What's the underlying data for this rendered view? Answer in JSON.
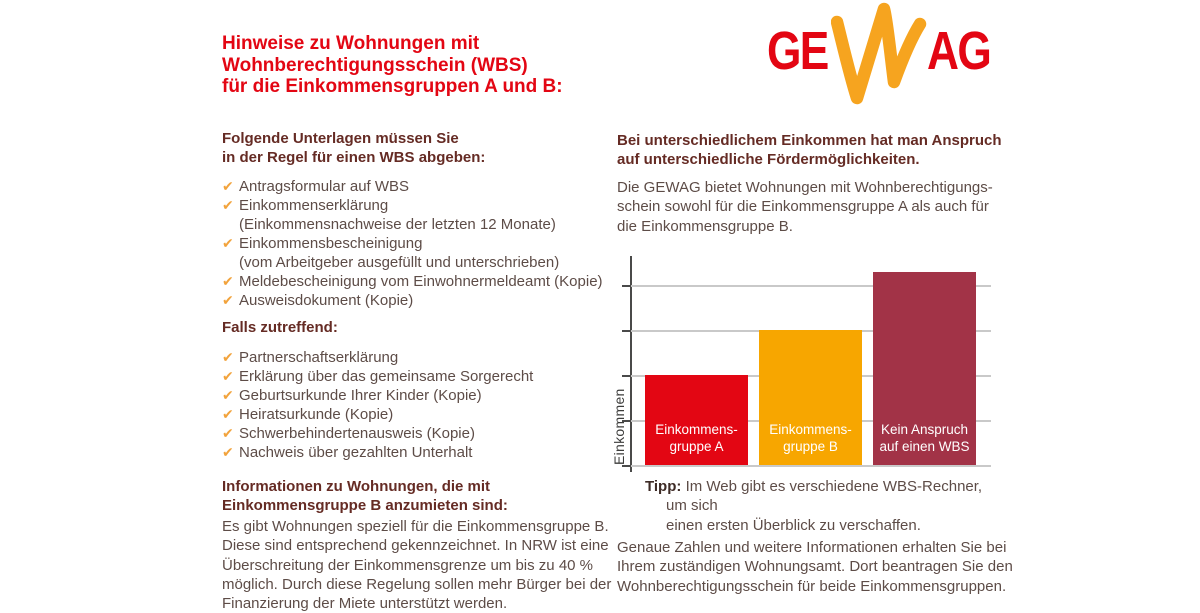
{
  "page": {
    "title_lines": [
      "Hinweise zu Wohnungen mit",
      "Wohnberechtigungsschein (WBS)",
      "für die Einkommensgruppen A und B:"
    ]
  },
  "logo": {
    "part1": "GE",
    "part2": "AG",
    "red": "#E30613",
    "orange": "#F6A41F"
  },
  "icons": {
    "check": "✔"
  },
  "left": {
    "heading1_lines": [
      "Folgende Unterlagen müssen Sie",
      "in der Regel für einen WBS abgeben:"
    ],
    "checklist1": [
      {
        "lines": [
          "Antragsformular auf WBS"
        ]
      },
      {
        "lines": [
          "Einkommenserklärung",
          "(Einkommensnachweise der letzten 12 Monate)"
        ]
      },
      {
        "lines": [
          "Einkommensbescheinigung",
          "(vom Arbeitgeber ausgefüllt und unterschrieben)"
        ]
      },
      {
        "lines": [
          "Meldebescheinigung vom Einwohnermeldeamt (Kopie)"
        ]
      },
      {
        "lines": [
          "Ausweisdokument (Kopie)"
        ]
      }
    ],
    "heading2": "Falls zutreffend:",
    "checklist2": [
      {
        "lines": [
          "Partnerschaftserklärung"
        ]
      },
      {
        "lines": [
          "Erklärung über das gemeinsame Sorgerecht"
        ]
      },
      {
        "lines": [
          "Geburtsurkunde Ihrer Kinder (Kopie)"
        ]
      },
      {
        "lines": [
          "Heiratsurkunde (Kopie)"
        ]
      },
      {
        "lines": [
          "Schwerbehindertenausweis (Kopie)"
        ]
      },
      {
        "lines": [
          "Nachweis über gezahlten Unterhalt"
        ]
      }
    ],
    "heading3_lines": [
      "Informationen zu Wohnungen, die mit",
      "Einkommensgruppe B anzumieten sind:"
    ],
    "paragraph_lines": [
      "Es gibt Wohnungen speziell für die Einkommensgruppe B.",
      "Diese sind entsprechend gekennzeichnet. In NRW ist eine",
      "Überschreitung der Einkommensgrenze um bis zu 40 %",
      "möglich. Durch diese Regelung sollen mehr Bürger bei der",
      "Finanzierung der Miete unterstützt werden."
    ]
  },
  "right": {
    "heading_lines": [
      "Bei unterschiedlichem Einkommen hat man Anspruch",
      "auf unterschiedliche Fördermöglichkeiten."
    ],
    "paragraph1_lines": [
      "Die GEWAG bietet Wohnungen mit Wohnberechtigungs-",
      "schein sowohl für die Einkommensgruppe A als auch für",
      "die Einkommensgruppe B."
    ],
    "tip_label": "Tipp:",
    "tip_lines": [
      "Im Web gibt es verschiedene WBS-Rechner, um sich",
      "einen ersten Überblick zu verschaffen."
    ],
    "paragraph2_lines": [
      "Genaue Zahlen und weitere Informationen erhalten Sie bei",
      "Ihrem zuständigen Wohnungsamt. Dort beantragen Sie den",
      "Wohnberechtigungsschein für beide Einkommensgruppen."
    ]
  },
  "chart_data": {
    "type": "bar",
    "title": "",
    "xlabel": "",
    "ylabel": "Einkommen",
    "categories": [
      "Einkommensgruppe A",
      "Einkommensgruppe B",
      "Kein Anspruch auf einen WBS"
    ],
    "bar_label_lines": [
      [
        "Einkommens-",
        "gruppe A"
      ],
      [
        "Einkommens-",
        "gruppe B"
      ],
      [
        "Kein Anspruch",
        "auf einen WBS"
      ]
    ],
    "values": [
      2,
      3,
      4.3
    ],
    "ylim": [
      0,
      4.65
    ],
    "gridline_step": 1,
    "grid": true,
    "legend": false,
    "colors": [
      "#E30613",
      "#F7A600",
      "#A23347"
    ],
    "label_color": "#FFFFFF",
    "note_no_numeric_ticks": true
  },
  "colors": {
    "title_red": "#E30613",
    "heading_maroon": "#652B24",
    "body_brown": "#5D4C47",
    "check_orange": "#F2A33C",
    "grid_gray": "#C9C9C9",
    "axis_dark": "#4A4A49"
  }
}
